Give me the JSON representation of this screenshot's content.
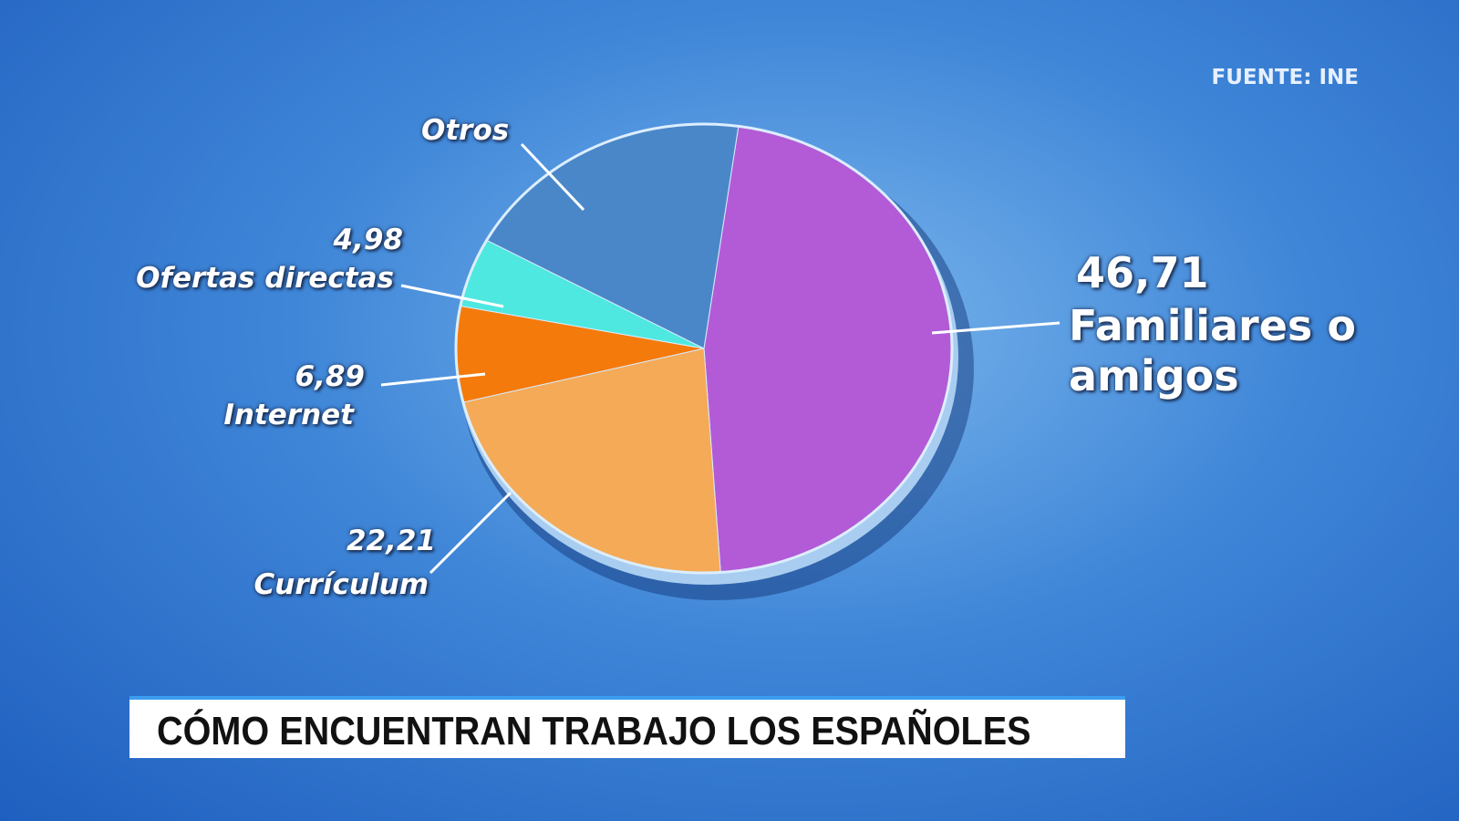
{
  "chart_data": {
    "type": "pie",
    "title": "CÓMO ENCUENTRAN TRABAJO LOS ESPAÑOLES",
    "source": "FUENTE: INE",
    "categories": [
      "Familiares o amigos",
      "Currículum",
      "Internet",
      "Ofertas directas",
      "Otros"
    ],
    "values": [
      46.71,
      22.21,
      6.89,
      4.98,
      19.21
    ],
    "value_labels": [
      "46,71",
      "22,21",
      "6,89",
      "4,98",
      null
    ],
    "colors": [
      "#b35bd6",
      "#f4aa57",
      "#f57a0c",
      "#4ee8e0",
      "#4a87c8"
    ]
  }
}
